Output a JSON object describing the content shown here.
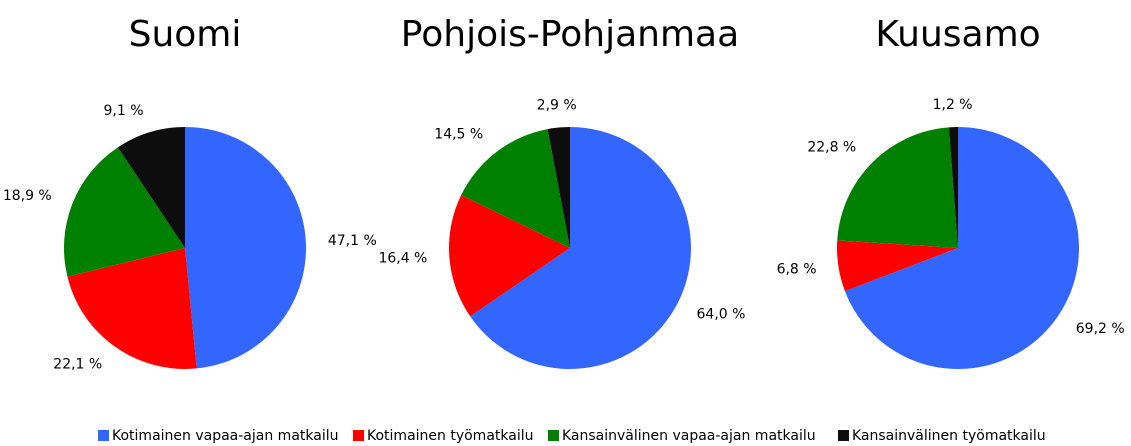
{
  "chart_data": [
    {
      "type": "pie",
      "title": "Suomi",
      "categories": [
        "Kotimainen vapaa-ajan matkailu",
        "Kotimainen työmatkailu",
        "Kansainvälinen vapaa-ajan matkailu",
        "Kansainvälinen työmatkailu"
      ],
      "colors": [
        "#3366ff",
        "#ff0000",
        "#008000",
        "#0d0d0d"
      ],
      "values": [
        47.1,
        22.1,
        18.9,
        9.1
      ],
      "value_labels": [
        "47,1 %",
        "22,1 %",
        "18,9 %",
        "9,1 %"
      ]
    },
    {
      "type": "pie",
      "title": "Pohjois-Pohjanmaa",
      "categories": [
        "Kotimainen vapaa-ajan matkailu",
        "Kotimainen työmatkailu",
        "Kansainvälinen vapaa-ajan matkailu",
        "Kansainvälinen työmatkailu"
      ],
      "colors": [
        "#3366ff",
        "#ff0000",
        "#008000",
        "#0d0d0d"
      ],
      "values": [
        64.0,
        16.4,
        14.5,
        2.9
      ],
      "value_labels": [
        "64,0 %",
        "16,4 %",
        "14,5 %",
        "2,9 %"
      ]
    },
    {
      "type": "pie",
      "title": "Kuusamo",
      "categories": [
        "Kotimainen vapaa-ajan matkailu",
        "Kotimainen työmatkailu",
        "Kansainvälinen vapaa-ajan matkailu",
        "Kansainvälinen työmatkailu"
      ],
      "colors": [
        "#3366ff",
        "#ff0000",
        "#008000",
        "#0d0d0d"
      ],
      "values": [
        69.2,
        6.8,
        22.8,
        1.2
      ],
      "value_labels": [
        "69,2 %",
        "6,8 %",
        "22,8 %",
        "1,2 %"
      ]
    }
  ]
}
